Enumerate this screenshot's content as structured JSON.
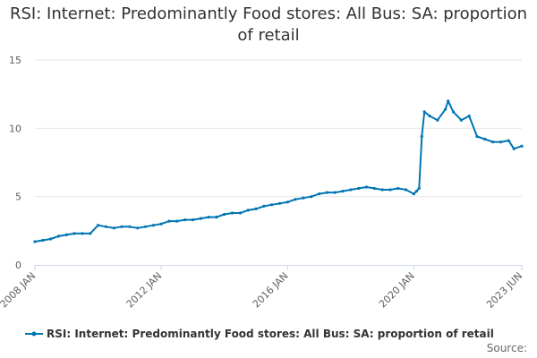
{
  "chart_data": {
    "type": "line",
    "title": "RSI: Internet: Predominantly Food stores: All Bus: SA: proportion of retail",
    "xlabel": "",
    "ylabel": "",
    "ylim": [
      0,
      15
    ],
    "y_ticks": [
      0,
      5,
      10,
      15
    ],
    "x_ticks": [
      "2008 JAN",
      "2012 JAN",
      "2016 JAN",
      "2020 JAN",
      "2023 JUN"
    ],
    "grid": true,
    "legend_position": "bottom",
    "series": [
      {
        "name": "RSI: Internet: Predominantly Food stores: All Bus: SA: proportion of retail",
        "color": "#0075b4",
        "x": [
          "2008 JAN",
          "2008 APR",
          "2008 JUL",
          "2008 OCT",
          "2009 JAN",
          "2009 APR",
          "2009 JUL",
          "2009 OCT",
          "2010 JAN",
          "2010 APR",
          "2010 JUL",
          "2010 OCT",
          "2011 JAN",
          "2011 APR",
          "2011 JUL",
          "2011 OCT",
          "2012 JAN",
          "2012 APR",
          "2012 JUL",
          "2012 OCT",
          "2013 JAN",
          "2013 APR",
          "2013 JUL",
          "2013 OCT",
          "2014 JAN",
          "2014 APR",
          "2014 JUL",
          "2014 OCT",
          "2015 JAN",
          "2015 APR",
          "2015 JUL",
          "2015 OCT",
          "2016 JAN",
          "2016 APR",
          "2016 JUL",
          "2016 OCT",
          "2017 JAN",
          "2017 APR",
          "2017 JUL",
          "2017 OCT",
          "2018 JAN",
          "2018 APR",
          "2018 JUL",
          "2018 OCT",
          "2019 JAN",
          "2019 APR",
          "2019 JUL",
          "2019 OCT",
          "2020 JAN",
          "2020 FEB",
          "2020 MAR",
          "2020 APR",
          "2020 MAY",
          "2020 JUL",
          "2020 OCT",
          "2021 JAN",
          "2021 FEB",
          "2021 APR",
          "2021 JUL",
          "2021 OCT",
          "2022 JAN",
          "2022 APR",
          "2022 JUL",
          "2022 OCT",
          "2023 JAN",
          "2023 MAR",
          "2023 JUN"
        ],
        "values": [
          1.7,
          1.8,
          1.9,
          2.1,
          2.2,
          2.3,
          2.3,
          2.3,
          2.9,
          2.8,
          2.7,
          2.8,
          2.8,
          2.7,
          2.8,
          2.9,
          3.0,
          3.2,
          3.2,
          3.3,
          3.3,
          3.4,
          3.5,
          3.5,
          3.7,
          3.8,
          3.8,
          4.0,
          4.1,
          4.3,
          4.4,
          4.5,
          4.6,
          4.8,
          4.9,
          5.0,
          5.2,
          5.3,
          5.3,
          5.4,
          5.5,
          5.6,
          5.7,
          5.6,
          5.5,
          5.5,
          5.6,
          5.5,
          5.2,
          5.4,
          5.6,
          9.4,
          11.2,
          10.9,
          10.6,
          11.4,
          12.0,
          11.2,
          10.6,
          10.9,
          9.4,
          9.2,
          9.0,
          9.0,
          9.1,
          8.5,
          8.7
        ]
      }
    ]
  },
  "source_label": "Source:"
}
